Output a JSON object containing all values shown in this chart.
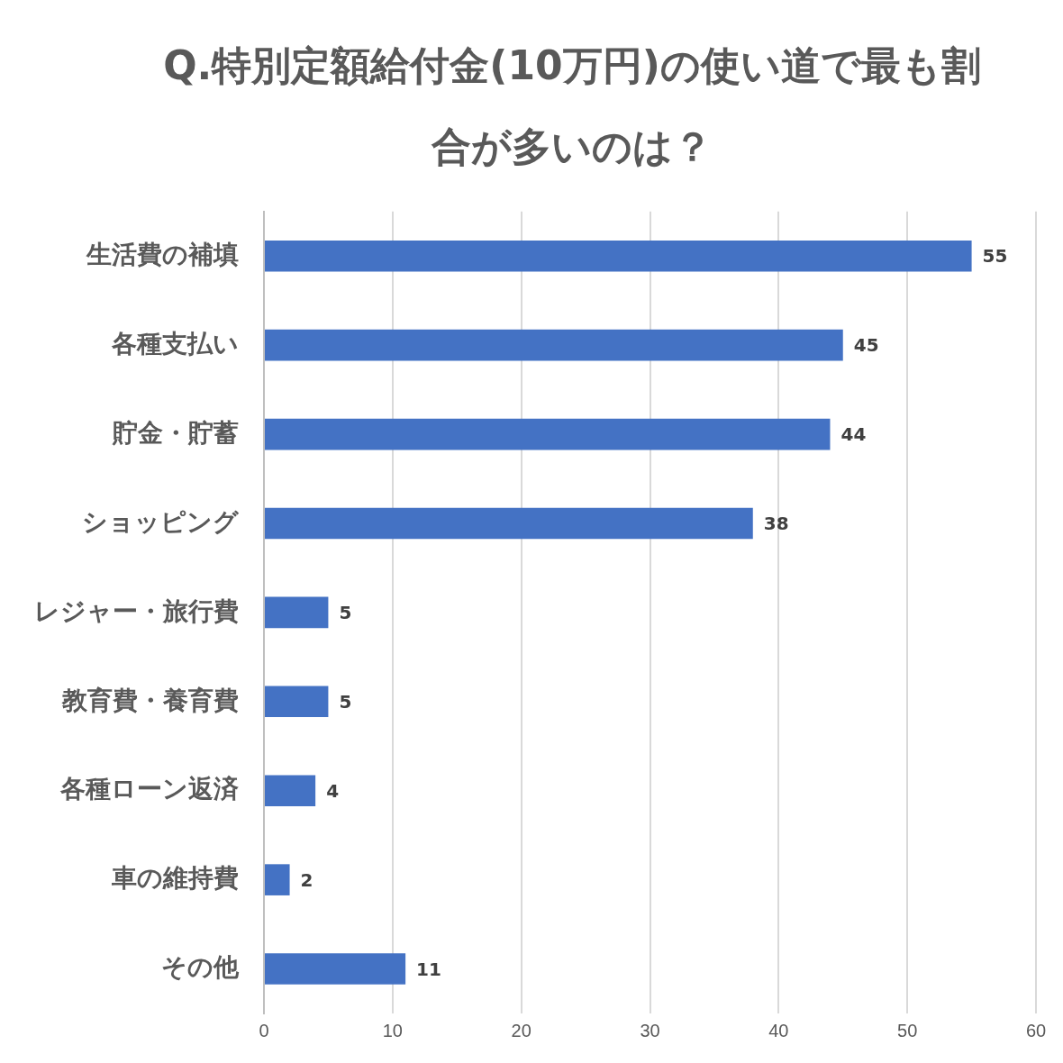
{
  "chart_data": {
    "type": "bar",
    "orientation": "horizontal",
    "title": "Q.特別定額給付金(10万円)の使い道で最も割合が多いのは？",
    "categories": [
      "生活費の補填",
      "各種支払い",
      "貯金・貯蓄",
      "ショッピング",
      "レジャー・旅行費",
      "教育費・養育費",
      "各種ローン返済",
      "車の維持費",
      "その他"
    ],
    "values": [
      55,
      45,
      44,
      38,
      5,
      5,
      4,
      2,
      11
    ],
    "color": "#4472c4",
    "xlim": [
      0,
      60
    ],
    "xticks": [
      0,
      10,
      20,
      30,
      40,
      50,
      60
    ],
    "grid": "x",
    "legend": false,
    "data_labels": true
  }
}
